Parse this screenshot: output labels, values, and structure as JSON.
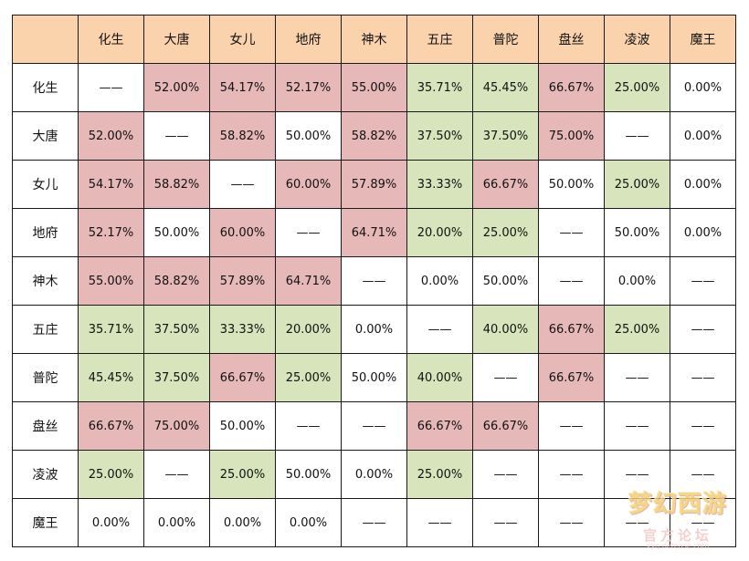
{
  "columns": [
    "化生",
    "大唐",
    "女儿",
    "地府",
    "神木",
    "五庄",
    "普陀",
    "盘丝",
    "凌波",
    "魔王"
  ],
  "rows": [
    {
      "label": "化生",
      "cells": [
        {
          "v": "——",
          "c": "white"
        },
        {
          "v": "52.00%",
          "c": "red"
        },
        {
          "v": "54.17%",
          "c": "red"
        },
        {
          "v": "52.17%",
          "c": "red"
        },
        {
          "v": "55.00%",
          "c": "red"
        },
        {
          "v": "35.71%",
          "c": "green"
        },
        {
          "v": "45.45%",
          "c": "green"
        },
        {
          "v": "66.67%",
          "c": "red"
        },
        {
          "v": "25.00%",
          "c": "green"
        },
        {
          "v": "0.00%",
          "c": "white"
        }
      ]
    },
    {
      "label": "大唐",
      "cells": [
        {
          "v": "52.00%",
          "c": "red"
        },
        {
          "v": "——",
          "c": "white"
        },
        {
          "v": "58.82%",
          "c": "red"
        },
        {
          "v": "50.00%",
          "c": "white"
        },
        {
          "v": "58.82%",
          "c": "red"
        },
        {
          "v": "37.50%",
          "c": "green"
        },
        {
          "v": "37.50%",
          "c": "green"
        },
        {
          "v": "75.00%",
          "c": "red"
        },
        {
          "v": "——",
          "c": "white"
        },
        {
          "v": "0.00%",
          "c": "white"
        }
      ]
    },
    {
      "label": "女儿",
      "cells": [
        {
          "v": "54.17%",
          "c": "red"
        },
        {
          "v": "58.82%",
          "c": "red"
        },
        {
          "v": "——",
          "c": "white"
        },
        {
          "v": "60.00%",
          "c": "red"
        },
        {
          "v": "57.89%",
          "c": "red"
        },
        {
          "v": "33.33%",
          "c": "green"
        },
        {
          "v": "66.67%",
          "c": "red"
        },
        {
          "v": "50.00%",
          "c": "white"
        },
        {
          "v": "25.00%",
          "c": "green"
        },
        {
          "v": "0.00%",
          "c": "white"
        }
      ]
    },
    {
      "label": "地府",
      "cells": [
        {
          "v": "52.17%",
          "c": "red"
        },
        {
          "v": "50.00%",
          "c": "white"
        },
        {
          "v": "60.00%",
          "c": "red"
        },
        {
          "v": "——",
          "c": "white"
        },
        {
          "v": "64.71%",
          "c": "red"
        },
        {
          "v": "20.00%",
          "c": "green"
        },
        {
          "v": "25.00%",
          "c": "green"
        },
        {
          "v": "——",
          "c": "white"
        },
        {
          "v": "50.00%",
          "c": "white"
        },
        {
          "v": "0.00%",
          "c": "white"
        }
      ]
    },
    {
      "label": "神木",
      "cells": [
        {
          "v": "55.00%",
          "c": "red"
        },
        {
          "v": "58.82%",
          "c": "red"
        },
        {
          "v": "57.89%",
          "c": "red"
        },
        {
          "v": "64.71%",
          "c": "red"
        },
        {
          "v": "——",
          "c": "white"
        },
        {
          "v": "0.00%",
          "c": "white"
        },
        {
          "v": "50.00%",
          "c": "white"
        },
        {
          "v": "——",
          "c": "white"
        },
        {
          "v": "0.00%",
          "c": "white"
        },
        {
          "v": "——",
          "c": "white"
        }
      ]
    },
    {
      "label": "五庄",
      "cells": [
        {
          "v": "35.71%",
          "c": "green"
        },
        {
          "v": "37.50%",
          "c": "green"
        },
        {
          "v": "33.33%",
          "c": "green"
        },
        {
          "v": "20.00%",
          "c": "green"
        },
        {
          "v": "0.00%",
          "c": "white"
        },
        {
          "v": "——",
          "c": "white"
        },
        {
          "v": "40.00%",
          "c": "green"
        },
        {
          "v": "66.67%",
          "c": "red"
        },
        {
          "v": "25.00%",
          "c": "green"
        },
        {
          "v": "——",
          "c": "white"
        }
      ]
    },
    {
      "label": "普陀",
      "cells": [
        {
          "v": "45.45%",
          "c": "green"
        },
        {
          "v": "37.50%",
          "c": "green"
        },
        {
          "v": "66.67%",
          "c": "red"
        },
        {
          "v": "25.00%",
          "c": "green"
        },
        {
          "v": "50.00%",
          "c": "white"
        },
        {
          "v": "40.00%",
          "c": "green"
        },
        {
          "v": "——",
          "c": "white"
        },
        {
          "v": "66.67%",
          "c": "red"
        },
        {
          "v": "——",
          "c": "white"
        },
        {
          "v": "——",
          "c": "white"
        }
      ]
    },
    {
      "label": "盘丝",
      "cells": [
        {
          "v": "66.67%",
          "c": "red"
        },
        {
          "v": "75.00%",
          "c": "red"
        },
        {
          "v": "50.00%",
          "c": "white"
        },
        {
          "v": "——",
          "c": "white"
        },
        {
          "v": "——",
          "c": "white"
        },
        {
          "v": "66.67%",
          "c": "red"
        },
        {
          "v": "66.67%",
          "c": "red"
        },
        {
          "v": "——",
          "c": "white"
        },
        {
          "v": "——",
          "c": "white"
        },
        {
          "v": "——",
          "c": "white"
        }
      ]
    },
    {
      "label": "凌波",
      "cells": [
        {
          "v": "25.00%",
          "c": "green"
        },
        {
          "v": "——",
          "c": "white"
        },
        {
          "v": "25.00%",
          "c": "green"
        },
        {
          "v": "50.00%",
          "c": "white"
        },
        {
          "v": "0.00%",
          "c": "white"
        },
        {
          "v": "25.00%",
          "c": "green"
        },
        {
          "v": "——",
          "c": "white"
        },
        {
          "v": "——",
          "c": "white"
        },
        {
          "v": "——",
          "c": "white"
        },
        {
          "v": "——",
          "c": "white"
        }
      ]
    },
    {
      "label": "魔王",
      "cells": [
        {
          "v": "0.00%",
          "c": "white"
        },
        {
          "v": "0.00%",
          "c": "white"
        },
        {
          "v": "0.00%",
          "c": "white"
        },
        {
          "v": "0.00%",
          "c": "white"
        },
        {
          "v": "——",
          "c": "white"
        },
        {
          "v": "——",
          "c": "white"
        },
        {
          "v": "——",
          "c": "white"
        },
        {
          "v": "——",
          "c": "white"
        },
        {
          "v": "——",
          "c": "white"
        },
        {
          "v": "——",
          "c": "white"
        }
      ]
    }
  ],
  "colors": {
    "header": "#fad3ad",
    "red": "#e6b8b8",
    "green": "#d7e4bc",
    "white": "#ffffff"
  },
  "watermark": {
    "title": "梦幻西游",
    "subtitle": "官方论坛",
    "url": "xyq.netease.com"
  }
}
